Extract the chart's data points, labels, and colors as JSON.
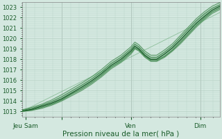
{
  "background_color": "#d4e8e0",
  "plot_bg_color": "#d4e8e0",
  "grid_color": "#b0ccbf",
  "line_color_dark": "#1a5c2a",
  "line_color_mid": "#2d7a3a",
  "line_color_light": "#4a9a5a",
  "ylim": [
    1012.5,
    1023.5
  ],
  "yticks": [
    1013,
    1014,
    1015,
    1016,
    1017,
    1018,
    1019,
    1020,
    1021,
    1022,
    1023
  ],
  "xlim": [
    0,
    100
  ],
  "xtick_positions": [
    2,
    20,
    55,
    90
  ],
  "xtick_labels": [
    "Jeu Sam",
    "",
    "Ven",
    "Dim"
  ],
  "xlabel": "Pression niveau de la mer( hPa )",
  "xlabel_fontsize": 7.5,
  "ytick_fontsize": 6,
  "xtick_fontsize": 6.5,
  "lines": [
    [
      [
        0,
        1013.0
      ],
      [
        5,
        1013.1
      ],
      [
        10,
        1013.3
      ],
      [
        15,
        1013.6
      ],
      [
        20,
        1014.0
      ],
      [
        25,
        1014.5
      ],
      [
        30,
        1015.0
      ],
      [
        35,
        1015.6
      ],
      [
        40,
        1016.3
      ],
      [
        45,
        1017.1
      ],
      [
        50,
        1017.7
      ],
      [
        55,
        1018.5
      ],
      [
        57,
        1019.0
      ],
      [
        59,
        1018.8
      ],
      [
        62,
        1018.2
      ],
      [
        65,
        1017.8
      ],
      [
        68,
        1017.8
      ],
      [
        72,
        1018.2
      ],
      [
        76,
        1018.8
      ],
      [
        80,
        1019.5
      ],
      [
        84,
        1020.3
      ],
      [
        88,
        1021.1
      ],
      [
        92,
        1021.8
      ],
      [
        96,
        1022.4
      ],
      [
        100,
        1022.8
      ]
    ],
    [
      [
        0,
        1013.0
      ],
      [
        5,
        1013.15
      ],
      [
        10,
        1013.4
      ],
      [
        15,
        1013.7
      ],
      [
        20,
        1014.1
      ],
      [
        25,
        1014.65
      ],
      [
        30,
        1015.15
      ],
      [
        35,
        1015.75
      ],
      [
        40,
        1016.45
      ],
      [
        45,
        1017.25
      ],
      [
        50,
        1017.85
      ],
      [
        55,
        1018.65
      ],
      [
        57,
        1019.1
      ],
      [
        59,
        1018.9
      ],
      [
        62,
        1018.3
      ],
      [
        65,
        1017.9
      ],
      [
        68,
        1017.9
      ],
      [
        72,
        1018.3
      ],
      [
        76,
        1018.9
      ],
      [
        80,
        1019.65
      ],
      [
        84,
        1020.45
      ],
      [
        88,
        1021.25
      ],
      [
        92,
        1021.95
      ],
      [
        96,
        1022.55
      ],
      [
        100,
        1022.95
      ]
    ],
    [
      [
        0,
        1013.05
      ],
      [
        5,
        1013.2
      ],
      [
        10,
        1013.5
      ],
      [
        15,
        1013.8
      ],
      [
        20,
        1014.2
      ],
      [
        25,
        1014.75
      ],
      [
        30,
        1015.3
      ],
      [
        35,
        1015.9
      ],
      [
        40,
        1016.6
      ],
      [
        45,
        1017.4
      ],
      [
        50,
        1018.0
      ],
      [
        55,
        1018.8
      ],
      [
        57,
        1019.25
      ],
      [
        59,
        1019.0
      ],
      [
        62,
        1018.4
      ],
      [
        65,
        1018.0
      ],
      [
        68,
        1018.0
      ],
      [
        72,
        1018.5
      ],
      [
        76,
        1019.1
      ],
      [
        80,
        1019.85
      ],
      [
        84,
        1020.65
      ],
      [
        88,
        1021.45
      ],
      [
        92,
        1022.1
      ],
      [
        96,
        1022.7
      ],
      [
        100,
        1023.1
      ]
    ],
    [
      [
        0,
        1013.1
      ],
      [
        5,
        1013.3
      ],
      [
        10,
        1013.6
      ],
      [
        15,
        1013.95
      ],
      [
        20,
        1014.4
      ],
      [
        25,
        1014.95
      ],
      [
        30,
        1015.5
      ],
      [
        35,
        1016.1
      ],
      [
        40,
        1016.8
      ],
      [
        45,
        1017.6
      ],
      [
        50,
        1018.2
      ],
      [
        55,
        1019.0
      ],
      [
        57,
        1019.45
      ],
      [
        59,
        1019.2
      ],
      [
        62,
        1018.6
      ],
      [
        65,
        1018.2
      ],
      [
        68,
        1018.2
      ],
      [
        72,
        1018.7
      ],
      [
        76,
        1019.3
      ],
      [
        80,
        1020.1
      ],
      [
        84,
        1020.9
      ],
      [
        88,
        1021.7
      ],
      [
        92,
        1022.35
      ],
      [
        96,
        1022.9
      ],
      [
        100,
        1023.25
      ]
    ],
    [
      [
        0,
        1013.15
      ],
      [
        5,
        1013.4
      ],
      [
        10,
        1013.7
      ],
      [
        15,
        1014.1
      ],
      [
        20,
        1014.6
      ],
      [
        25,
        1015.15
      ],
      [
        30,
        1015.7
      ],
      [
        35,
        1016.3
      ],
      [
        40,
        1017.0
      ],
      [
        45,
        1017.8
      ],
      [
        50,
        1018.4
      ],
      [
        55,
        1019.2
      ],
      [
        57,
        1019.65
      ],
      [
        59,
        1019.4
      ],
      [
        62,
        1018.8
      ],
      [
        65,
        1018.4
      ],
      [
        68,
        1018.4
      ],
      [
        72,
        1018.9
      ],
      [
        76,
        1019.5
      ],
      [
        80,
        1020.3
      ],
      [
        84,
        1021.1
      ],
      [
        88,
        1021.9
      ],
      [
        92,
        1022.55
      ],
      [
        96,
        1023.1
      ],
      [
        100,
        1023.45
      ]
    ],
    [
      [
        0,
        1013.0
      ],
      [
        100,
        1022.5
      ]
    ]
  ],
  "line_widths": [
    0.7,
    0.7,
    0.9,
    0.7,
    0.7,
    0.6
  ],
  "line_alphas": [
    0.7,
    0.8,
    1.0,
    0.8,
    0.7,
    0.5
  ],
  "line_colors": [
    "#2d7a3a",
    "#2d7a3a",
    "#1a5c2a",
    "#2d7a3a",
    "#2d7a3a",
    "#4a9a5a"
  ]
}
